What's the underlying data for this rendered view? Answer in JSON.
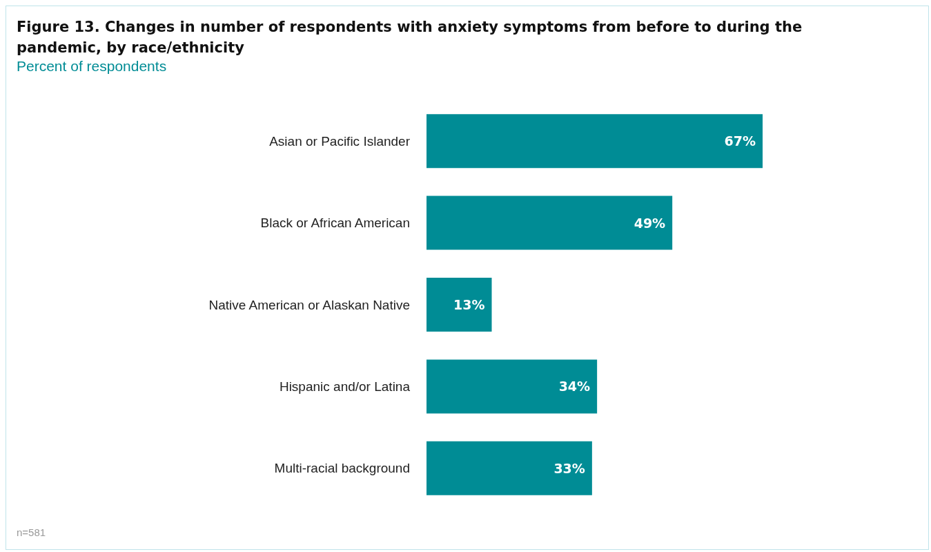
{
  "chart_data": {
    "type": "bar",
    "orientation": "horizontal",
    "title": "Figure 13. Changes in number of respondents with anxiety symptoms from before to during the pandemic, by race/ethnicity",
    "subtitle": "Percent of respondents",
    "categories": [
      "Asian or Pacific Islander",
      "Black or African American",
      "Native American or Alaskan Native",
      "Hispanic and/or Latina",
      "Multi-racial background"
    ],
    "values": [
      67,
      49,
      13,
      34,
      33
    ],
    "value_labels": [
      "67%",
      "49%",
      "13%",
      "34%",
      "33%"
    ],
    "color": "#008c95",
    "annotations": [
      "n=581"
    ]
  }
}
